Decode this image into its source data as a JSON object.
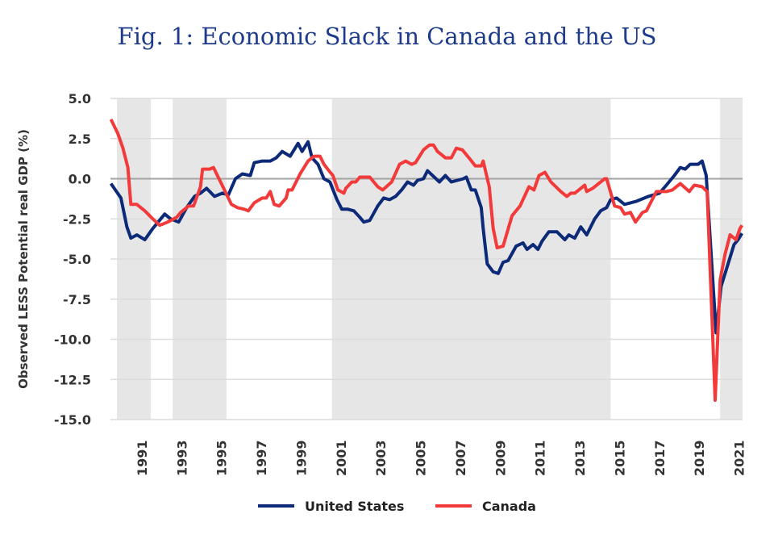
{
  "chart_data": {
    "type": "line",
    "title": "Fig. 1: Economic Slack in Canada and the US",
    "xlabel": "",
    "ylabel": "Observed LESS Potential real GDP (%)",
    "ylim": [
      -15,
      5
    ],
    "xlim": [
      1989.7,
      2021.65
    ],
    "yticks": [
      "5.0",
      "2.5",
      "0.0",
      "-2.5",
      "-5.0",
      "-7.5",
      "-10.0",
      "-12.5",
      "-15.0"
    ],
    "ytick_values": [
      5,
      2.5,
      0,
      -2.5,
      -5,
      -7.5,
      -10,
      -12.5,
      -15
    ],
    "xticks": [
      "1991",
      "1993",
      "1995",
      "1997",
      "1999",
      "2001",
      "2003",
      "2005",
      "2007",
      "2009",
      "2011",
      "2013",
      "2015",
      "2017",
      "2019",
      "2021"
    ],
    "grid": "horizontal",
    "legend": "bottom",
    "shaded_periods": [
      [
        1990.2,
        1991.9
      ],
      [
        1993.0,
        1995.7
      ],
      [
        2001.0,
        2015.0
      ],
      [
        2020.5,
        2021.65
      ]
    ],
    "colors": {
      "United States": "#0c2a78",
      "Canada": "#f23a3a",
      "shading": "#e6e6e6"
    },
    "series": [
      {
        "name": "United States",
        "points": [
          [
            1989.9,
            -0.3
          ],
          [
            1990.4,
            -1.2
          ],
          [
            1990.7,
            -3.0
          ],
          [
            1990.9,
            -3.7
          ],
          [
            1991.2,
            -3.5
          ],
          [
            1991.6,
            -3.8
          ],
          [
            1992.0,
            -3.1
          ],
          [
            1992.6,
            -2.2
          ],
          [
            1992.9,
            -2.5
          ],
          [
            1993.3,
            -2.7
          ],
          [
            1993.7,
            -1.8
          ],
          [
            1994.1,
            -1.1
          ],
          [
            1994.4,
            -0.9
          ],
          [
            1994.7,
            -0.6
          ],
          [
            1995.1,
            -1.1
          ],
          [
            1995.5,
            -0.9
          ],
          [
            1995.8,
            -1.0
          ],
          [
            1996.15,
            0.0
          ],
          [
            1996.5,
            0.3
          ],
          [
            1996.9,
            0.2
          ],
          [
            1997.1,
            1.0
          ],
          [
            1997.5,
            1.1
          ],
          [
            1997.9,
            1.1
          ],
          [
            1998.2,
            1.3
          ],
          [
            1998.5,
            1.7
          ],
          [
            1998.9,
            1.4
          ],
          [
            1999.3,
            2.2
          ],
          [
            1999.5,
            1.7
          ],
          [
            1999.8,
            2.3
          ],
          [
            2000.0,
            1.3
          ],
          [
            2000.3,
            0.9
          ],
          [
            2000.6,
            0.0
          ],
          [
            2000.9,
            -0.2
          ],
          [
            2001.25,
            -1.3
          ],
          [
            2001.5,
            -1.9
          ],
          [
            2001.8,
            -1.9
          ],
          [
            2002.1,
            -2.0
          ],
          [
            2002.4,
            -2.4
          ],
          [
            2002.6,
            -2.7
          ],
          [
            2002.9,
            -2.6
          ],
          [
            2003.3,
            -1.7
          ],
          [
            2003.6,
            -1.2
          ],
          [
            2003.9,
            -1.3
          ],
          [
            2004.2,
            -1.1
          ],
          [
            2004.5,
            -0.7
          ],
          [
            2004.8,
            -0.2
          ],
          [
            2005.1,
            -0.4
          ],
          [
            2005.3,
            -0.1
          ],
          [
            2005.6,
            0.0
          ],
          [
            2005.8,
            0.5
          ],
          [
            2006.4,
            -0.2
          ],
          [
            2006.7,
            0.2
          ],
          [
            2007.0,
            -0.2
          ],
          [
            2007.6,
            0.0
          ],
          [
            2007.75,
            0.1
          ],
          [
            2008.0,
            -0.7
          ],
          [
            2008.2,
            -0.7
          ],
          [
            2008.5,
            -1.8
          ],
          [
            2008.6,
            -3.1
          ],
          [
            2008.8,
            -5.3
          ],
          [
            2009.1,
            -5.8
          ],
          [
            2009.35,
            -5.9
          ],
          [
            2009.6,
            -5.2
          ],
          [
            2009.85,
            -5.1
          ],
          [
            2010.25,
            -4.2
          ],
          [
            2010.6,
            -4.0
          ],
          [
            2010.8,
            -4.4
          ],
          [
            2011.1,
            -4.1
          ],
          [
            2011.35,
            -4.4
          ],
          [
            2011.55,
            -3.9
          ],
          [
            2011.9,
            -3.3
          ],
          [
            2012.3,
            -3.3
          ],
          [
            2012.7,
            -3.8
          ],
          [
            2012.9,
            -3.5
          ],
          [
            2013.2,
            -3.7
          ],
          [
            2013.5,
            -3.0
          ],
          [
            2013.8,
            -3.5
          ],
          [
            2014.2,
            -2.5
          ],
          [
            2014.5,
            -2.0
          ],
          [
            2014.8,
            -1.8
          ],
          [
            2015.0,
            -1.3
          ],
          [
            2015.3,
            -1.2
          ],
          [
            2015.7,
            -1.6
          ],
          [
            2016.3,
            -1.4
          ],
          [
            2016.9,
            -1.1
          ],
          [
            2017.45,
            -0.9
          ],
          [
            2017.8,
            -0.4
          ],
          [
            2018.2,
            0.2
          ],
          [
            2018.5,
            0.7
          ],
          [
            2018.75,
            0.6
          ],
          [
            2019.0,
            0.9
          ],
          [
            2019.4,
            0.9
          ],
          [
            2019.6,
            1.1
          ],
          [
            2019.8,
            0.2
          ],
          [
            2020.3,
            -9.6
          ],
          [
            2020.55,
            -6.7
          ],
          [
            2020.8,
            -5.7
          ],
          [
            2021.2,
            -4.1
          ],
          [
            2021.4,
            -3.8
          ],
          [
            2021.6,
            -3.4
          ]
        ]
      },
      {
        "name": "Canada",
        "points": [
          [
            1989.9,
            3.7
          ],
          [
            1990.25,
            2.8
          ],
          [
            1990.5,
            1.9
          ],
          [
            1990.75,
            0.7
          ],
          [
            1990.9,
            -1.6
          ],
          [
            1991.2,
            -1.6
          ],
          [
            1991.6,
            -2.0
          ],
          [
            1992.0,
            -2.5
          ],
          [
            1992.35,
            -2.9
          ],
          [
            1992.75,
            -2.7
          ],
          [
            1993.2,
            -2.4
          ],
          [
            1993.4,
            -2.1
          ],
          [
            1993.8,
            -1.7
          ],
          [
            1994.05,
            -1.7
          ],
          [
            1994.4,
            -0.5
          ],
          [
            1994.5,
            0.6
          ],
          [
            1994.85,
            0.6
          ],
          [
            1995.05,
            0.7
          ],
          [
            1995.6,
            -0.7
          ],
          [
            1995.95,
            -1.6
          ],
          [
            1996.25,
            -1.8
          ],
          [
            1996.6,
            -1.9
          ],
          [
            1996.8,
            -2.0
          ],
          [
            1997.1,
            -1.5
          ],
          [
            1997.5,
            -1.2
          ],
          [
            1997.7,
            -1.2
          ],
          [
            1997.9,
            -0.8
          ],
          [
            1998.1,
            -1.6
          ],
          [
            1998.35,
            -1.7
          ],
          [
            1998.7,
            -1.2
          ],
          [
            1998.8,
            -0.7
          ],
          [
            1999.0,
            -0.7
          ],
          [
            1999.4,
            0.3
          ],
          [
            1999.8,
            1.1
          ],
          [
            2000.1,
            1.4
          ],
          [
            2000.4,
            1.4
          ],
          [
            2000.6,
            0.9
          ],
          [
            2000.85,
            0.5
          ],
          [
            2001.05,
            0.2
          ],
          [
            2001.3,
            -0.7
          ],
          [
            2001.6,
            -0.9
          ],
          [
            2001.7,
            -0.6
          ],
          [
            2002.0,
            -0.2
          ],
          [
            2002.2,
            -0.2
          ],
          [
            2002.4,
            0.1
          ],
          [
            2002.9,
            0.1
          ],
          [
            2003.3,
            -0.5
          ],
          [
            2003.55,
            -0.7
          ],
          [
            2004.0,
            -0.2
          ],
          [
            2004.4,
            0.9
          ],
          [
            2004.7,
            1.1
          ],
          [
            2005.0,
            0.9
          ],
          [
            2005.2,
            1.0
          ],
          [
            2005.6,
            1.8
          ],
          [
            2005.9,
            2.1
          ],
          [
            2006.1,
            2.1
          ],
          [
            2006.3,
            1.7
          ],
          [
            2006.7,
            1.3
          ],
          [
            2007.0,
            1.3
          ],
          [
            2007.25,
            1.9
          ],
          [
            2007.55,
            1.8
          ],
          [
            2007.95,
            1.2
          ],
          [
            2008.2,
            0.8
          ],
          [
            2008.5,
            0.8
          ],
          [
            2008.6,
            1.1
          ],
          [
            2008.9,
            -0.5
          ],
          [
            2009.1,
            -3.1
          ],
          [
            2009.3,
            -4.3
          ],
          [
            2009.6,
            -4.2
          ],
          [
            2010.05,
            -2.3
          ],
          [
            2010.45,
            -1.7
          ],
          [
            2010.9,
            -0.5
          ],
          [
            2011.15,
            -0.7
          ],
          [
            2011.4,
            0.2
          ],
          [
            2011.7,
            0.4
          ],
          [
            2012.0,
            -0.2
          ],
          [
            2012.5,
            -0.8
          ],
          [
            2012.8,
            -1.1
          ],
          [
            2013.0,
            -0.9
          ],
          [
            2013.2,
            -0.9
          ],
          [
            2013.7,
            -0.4
          ],
          [
            2013.8,
            -0.8
          ],
          [
            2014.1,
            -0.6
          ],
          [
            2014.7,
            0.0
          ],
          [
            2014.8,
            0.0
          ],
          [
            2015.2,
            -1.7
          ],
          [
            2015.5,
            -1.8
          ],
          [
            2015.7,
            -2.2
          ],
          [
            2016.0,
            -2.1
          ],
          [
            2016.25,
            -2.7
          ],
          [
            2016.6,
            -2.1
          ],
          [
            2016.8,
            -2.0
          ],
          [
            2017.3,
            -0.8
          ],
          [
            2017.8,
            -0.8
          ],
          [
            2018.1,
            -0.7
          ],
          [
            2018.5,
            -0.3
          ],
          [
            2018.95,
            -0.8
          ],
          [
            2019.2,
            -0.4
          ],
          [
            2019.6,
            -0.5
          ],
          [
            2019.85,
            -0.8
          ],
          [
            2020.25,
            -13.8
          ],
          [
            2020.5,
            -6.3
          ],
          [
            2020.75,
            -4.7
          ],
          [
            2021.0,
            -3.5
          ],
          [
            2021.3,
            -3.8
          ],
          [
            2021.5,
            -3.1
          ],
          [
            2021.6,
            -2.9
          ]
        ]
      }
    ]
  }
}
